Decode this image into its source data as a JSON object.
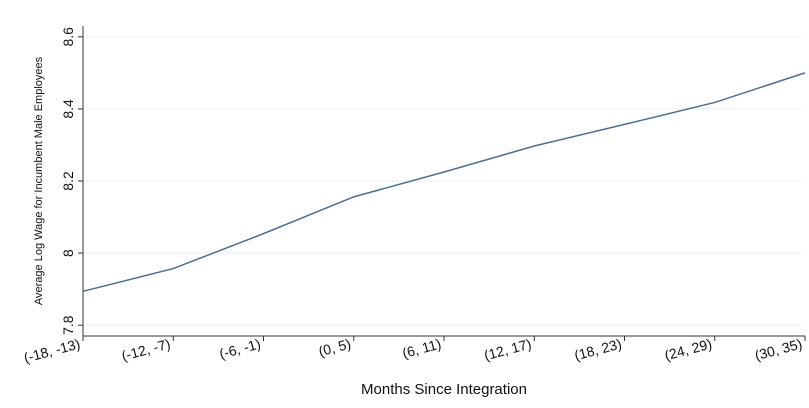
{
  "chart_data": {
    "type": "line",
    "x_label": "Months Since Integration",
    "y_label": "Average Log Wage for Incumbent Male Employees",
    "categories": [
      "(-18, -13)",
      "(-12, -7)",
      "(-6, -1)",
      "(0, 5)",
      "(6, 11)",
      "(12, 17)",
      "(18, 23)",
      "(24, 29)",
      "(30, 35)"
    ],
    "series": [
      {
        "name": "Average Log Wage",
        "color": "#4e6e8e",
        "values": [
          7.894,
          7.957,
          8.054,
          8.156,
          8.225,
          8.297,
          8.357,
          8.418,
          8.5
        ]
      }
    ],
    "ylim": [
      7.77,
      8.63
    ],
    "yticks": [
      {
        "value": 7.8,
        "label": "7.8"
      },
      8,
      {
        "value": 8.2,
        "label": "8.2"
      },
      {
        "value": 8.4,
        "label": "8.4"
      },
      {
        "value": 8.6,
        "label": "8.6"
      }
    ],
    "grid": true
  }
}
